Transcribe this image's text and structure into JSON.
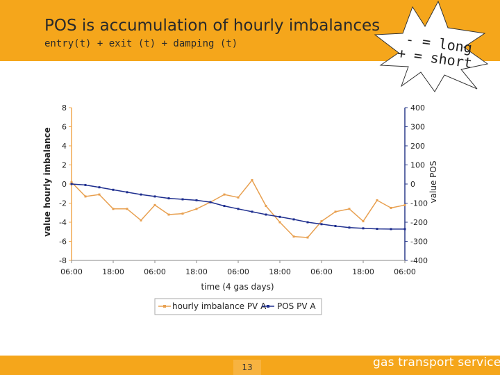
{
  "slide": {
    "title": "POS is accumulation of hourly imbalances",
    "subtitle": "entry(t) + exit (t) + damping (t)",
    "callout": [
      "- = long",
      "+ = short"
    ],
    "page_number": "13",
    "brand": "gas transport services",
    "colors": {
      "accent": "#f5a61b",
      "series_imbalance": "#e8a050",
      "series_pos": "#1f2f8f"
    }
  },
  "chart_data": {
    "type": "line",
    "xlabel": "time (4 gas days)",
    "ylabel": "value hourly imbalance",
    "y2label": "value POS",
    "x_tick_labels": [
      "06:00",
      "18:00",
      "06:00",
      "18:00",
      "06:00",
      "18:00",
      "06:00",
      "18:00",
      "06:00"
    ],
    "ylim": [
      -8,
      8
    ],
    "y_ticks": [
      "8",
      "6",
      "4",
      "2",
      "0",
      "-2",
      "-4",
      "-6",
      "-8"
    ],
    "y2lim": [
      -400,
      400
    ],
    "y2_ticks": [
      "400",
      "300",
      "200",
      "100",
      "0",
      "-100",
      "-200",
      "-300",
      "-400"
    ],
    "grid": false,
    "legend_position": "bottom-center",
    "x_hours": [
      0,
      4,
      8,
      12,
      16,
      20,
      24,
      28,
      32,
      36,
      40,
      44,
      48,
      52,
      56,
      60,
      64,
      68,
      72,
      76,
      80,
      84,
      88,
      92,
      96
    ],
    "series": [
      {
        "name": "hourly imbalance PV A",
        "axis": "left",
        "values": [
          0.2,
          -1.3,
          -1.1,
          -2.6,
          -2.6,
          -3.8,
          -2.2,
          -3.2,
          -3.1,
          -2.6,
          -1.9,
          -1.1,
          -1.4,
          0.4,
          -2.3,
          -4.0,
          -5.5,
          -5.6,
          -3.9,
          -2.9,
          -2.6,
          -3.9,
          -1.7,
          -2.5,
          -2.2
        ]
      },
      {
        "name": "POS PV A",
        "axis": "right",
        "values": [
          0,
          -5,
          -17,
          -30,
          -43,
          -55,
          -65,
          -75,
          -80,
          -85,
          -95,
          -115,
          -130,
          -145,
          -160,
          -172,
          -185,
          -200,
          -210,
          -220,
          -228,
          -232,
          -235,
          -236,
          -236
        ]
      }
    ]
  }
}
